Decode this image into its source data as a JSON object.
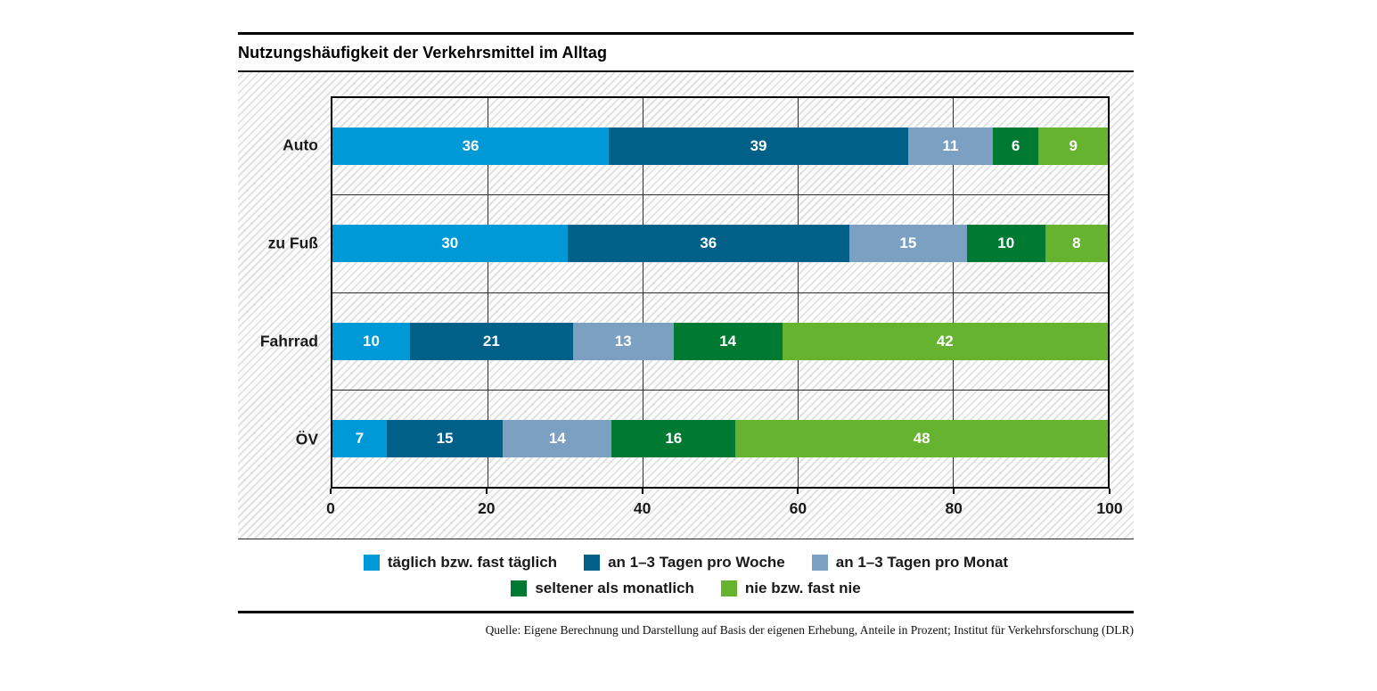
{
  "title": "Nutzungshäufigkeit der Verkehrsmittel im Alltag",
  "source": "Quelle: Eigene Berechnung und Darstellung auf Basis der eigenen Erhebung, Anteile in Prozent; Institut für Verkehrsforschung (DLR)",
  "chart_data": {
    "type": "bar",
    "orientation": "horizontal",
    "stacked": true,
    "title": "Nutzungshäufigkeit der Verkehrsmittel im Alltag",
    "categories": [
      "Auto",
      "zu Fuß",
      "Fahrrad",
      "ÖV"
    ],
    "series": [
      {
        "name": "täglich bzw. fast täglich",
        "color": "#0099D8",
        "values": [
          36,
          30,
          10,
          7
        ]
      },
      {
        "name": "an 1–3 Tagen pro Woche",
        "color": "#006087",
        "values": [
          39,
          36,
          21,
          15
        ]
      },
      {
        "name": "an 1–3 Tagen pro Monat",
        "color": "#7CA0C2",
        "values": [
          11,
          15,
          13,
          14
        ]
      },
      {
        "name": "seltener als monatlich",
        "color": "#007A33",
        "values": [
          6,
          10,
          14,
          16
        ]
      },
      {
        "name": "nie bzw. fast nie",
        "color": "#65B32E",
        "values": [
          9,
          8,
          42,
          48
        ]
      }
    ],
    "x_ticks": [
      0,
      20,
      40,
      60,
      80,
      100
    ],
    "xlim": [
      0,
      100
    ],
    "unit": "Prozent",
    "value_labels": "inside, white, bold",
    "grid": true,
    "background_pattern": "diagonal-hatch",
    "legend_position": "bottom-center",
    "legend_rows": [
      [
        0,
        1,
        2
      ],
      [
        3,
        4
      ]
    ]
  }
}
